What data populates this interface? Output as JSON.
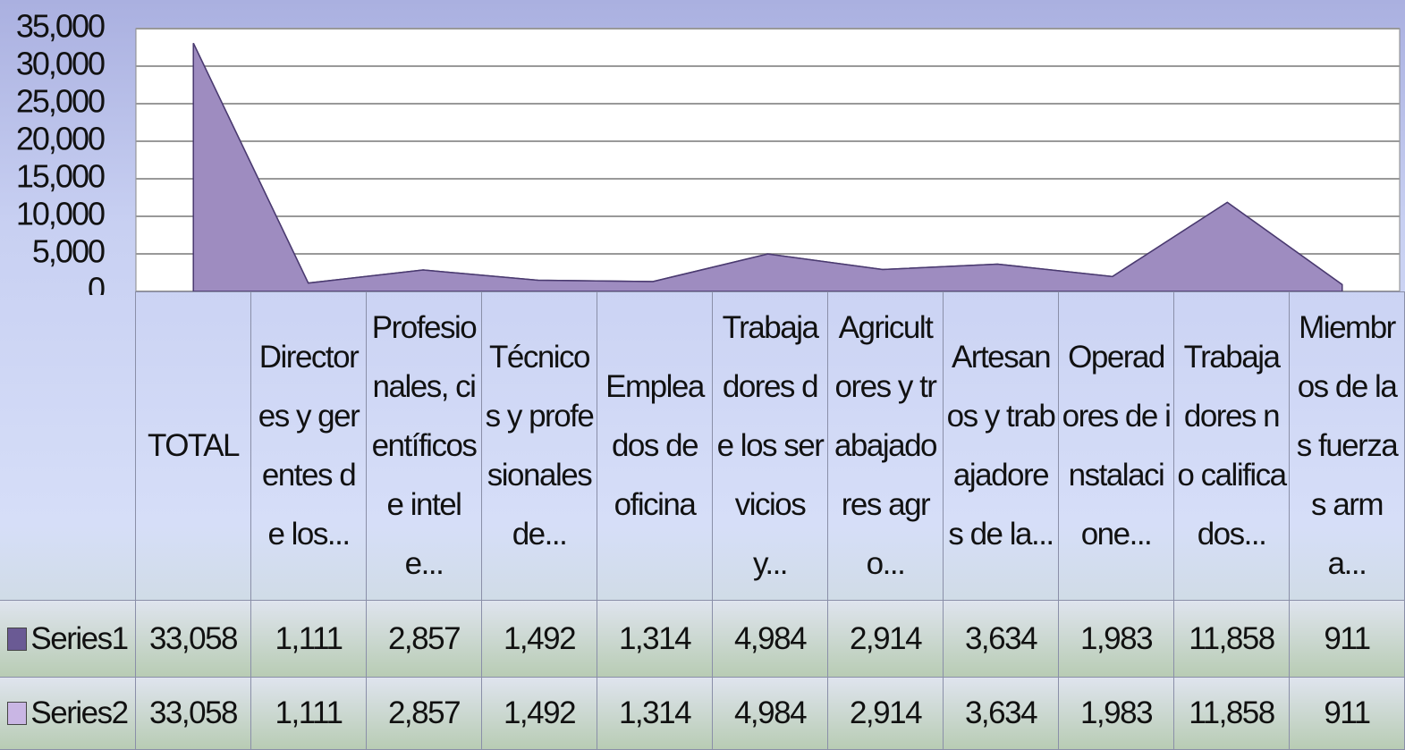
{
  "chart_data": {
    "type": "area",
    "categories": [
      "TOTAL",
      "Directores y gerentes de los...",
      "Profesionales, científicos e intele...",
      "Técnicos y profesionales de...",
      "Empleados de oficina",
      "Trabajadores de los servicios y...",
      "Agricultores y trabajadores agro...",
      "Artesanos y trabajadores de la...",
      "Operadores de instalacione...",
      "Trabajadores no calificados...",
      "Miembros de las fuerzas arma..."
    ],
    "series": [
      {
        "name": "Series1",
        "color": "#6a5a94",
        "values": [
          33058,
          1111,
          2857,
          1492,
          1314,
          4984,
          2914,
          3634,
          1983,
          11858,
          911
        ],
        "value_labels": [
          "33,058",
          "1,111",
          "2,857",
          "1,492",
          "1,314",
          "4,984",
          "2,914",
          "3,634",
          "1,983",
          "11,858",
          "911"
        ]
      },
      {
        "name": "Series2",
        "color": "#c9b6e4",
        "values": [
          33058,
          1111,
          2857,
          1492,
          1314,
          4984,
          2914,
          3634,
          1983,
          11858,
          911
        ],
        "value_labels": [
          "33,058",
          "1,111",
          "2,857",
          "1,492",
          "1,314",
          "4,984",
          "2,914",
          "3,634",
          "1,983",
          "11,858",
          "911"
        ]
      }
    ],
    "ylim": [
      0,
      35000
    ],
    "yticks": [
      0,
      {
        "value": 5000,
        "label": "5,000"
      },
      {
        "value": 10000,
        "label": "10,000"
      },
      {
        "value": 15000,
        "label": "15,000"
      },
      {
        "value": 20000,
        "label": "20,000"
      },
      {
        "value": 25000,
        "label": "25,000"
      },
      {
        "value": 30000,
        "label": "30,000"
      },
      {
        "value": 35000,
        "label": "35,000"
      }
    ],
    "grid": true,
    "data_table": true
  }
}
